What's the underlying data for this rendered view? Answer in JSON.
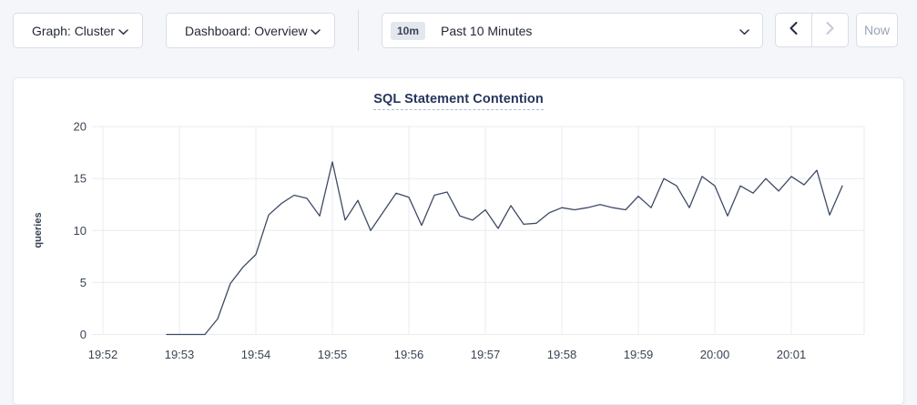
{
  "toolbar": {
    "graph_dropdown": {
      "label": "Graph: Cluster"
    },
    "dashboard_dropdown": {
      "label": "Dashboard: Overview"
    },
    "time_picker": {
      "badge": "10m",
      "label": "Past 10 Minutes"
    },
    "now_button": {
      "label": "Now"
    }
  },
  "colors": {
    "page_background": "#f4f6fa",
    "card_background": "#ffffff",
    "accent_title": "#26355e",
    "line": "#3e4a66",
    "grid": "#e9ebf0",
    "tick_text": "#394455",
    "disabled_text": "#9aa3b5"
  },
  "chart_data": {
    "type": "line",
    "title": "SQL Statement Contention",
    "xlabel": "",
    "ylabel": "queries",
    "ylim": [
      0,
      20
    ],
    "yticks": [
      0,
      5,
      10,
      15,
      20
    ],
    "xticks": [
      "19:52",
      "19:53",
      "19:54",
      "19:55",
      "19:56",
      "19:57",
      "19:58",
      "19:59",
      "20:00",
      "20:01"
    ],
    "grid": true,
    "legend": "none",
    "start_time": "19:52:50",
    "interval_seconds": 10,
    "series": [
      {
        "name": "queries",
        "values": [
          0,
          0,
          0,
          0,
          1.5,
          4.9,
          6.5,
          7.7,
          11.5,
          12.6,
          13.4,
          13.1,
          11.4,
          16.6,
          11.0,
          12.9,
          10.0,
          11.8,
          13.6,
          13.2,
          10.5,
          13.4,
          13.7,
          11.4,
          11.0,
          12.0,
          10.2,
          12.4,
          10.6,
          10.7,
          11.7,
          12.2,
          12.0,
          12.2,
          12.5,
          12.2,
          12.0,
          13.3,
          12.2,
          15.0,
          14.3,
          12.2,
          15.2,
          14.3,
          11.4,
          14.3,
          13.6,
          15.0,
          13.8,
          15.2,
          14.4,
          15.8,
          11.5,
          14.3
        ]
      }
    ]
  }
}
